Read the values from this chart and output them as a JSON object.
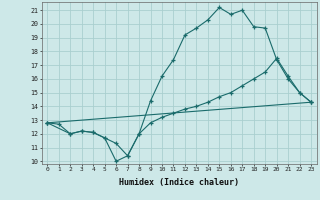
{
  "xlabel": "Humidex (Indice chaleur)",
  "background_color": "#cde8e8",
  "grid_color": "#aacfcf",
  "line_color": "#1a6b6b",
  "xlim": [
    -0.5,
    23.5
  ],
  "ylim": [
    9.8,
    21.6
  ],
  "yticks": [
    10,
    11,
    12,
    13,
    14,
    15,
    16,
    17,
    18,
    19,
    20,
    21
  ],
  "xticks": [
    0,
    1,
    2,
    3,
    4,
    5,
    6,
    7,
    8,
    9,
    10,
    11,
    12,
    13,
    14,
    15,
    16,
    17,
    18,
    19,
    20,
    21,
    22,
    23
  ],
  "line1": {
    "x": [
      0,
      1,
      2,
      3,
      4,
      5,
      6,
      7,
      8,
      9,
      10,
      11,
      12,
      13,
      14,
      15,
      16,
      17,
      18,
      19,
      20,
      21,
      22,
      23
    ],
    "y": [
      12.8,
      12.7,
      12.0,
      12.2,
      12.1,
      11.7,
      10.0,
      10.4,
      12.0,
      14.4,
      16.2,
      17.4,
      19.2,
      19.7,
      20.3,
      21.2,
      20.7,
      21.0,
      19.8,
      19.7,
      17.4,
      16.0,
      15.0,
      14.3
    ]
  },
  "line2": {
    "x": [
      0,
      23
    ],
    "y": [
      12.8,
      14.3
    ]
  },
  "line3": {
    "x": [
      0,
      2,
      3,
      4,
      5,
      6,
      7,
      8,
      9,
      10,
      11,
      12,
      13,
      14,
      15,
      16,
      17,
      18,
      19,
      20,
      21,
      22,
      23
    ],
    "y": [
      12.8,
      12.0,
      12.2,
      12.1,
      11.7,
      11.3,
      10.4,
      12.0,
      12.8,
      13.2,
      13.5,
      13.8,
      14.0,
      14.3,
      14.7,
      15.0,
      15.5,
      16.0,
      16.5,
      17.5,
      16.2,
      15.0,
      14.3
    ]
  }
}
